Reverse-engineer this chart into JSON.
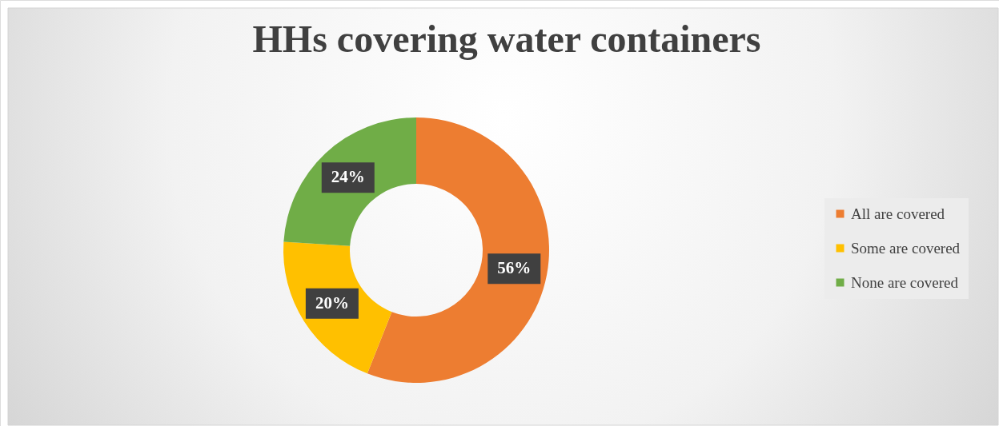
{
  "chart_data": {
    "type": "donut",
    "title": "HHs covering water containers",
    "categories": [
      "All are covered",
      "Some are covered",
      "None are covered"
    ],
    "values": [
      56,
      20,
      24
    ],
    "colors": [
      "#ed7d31",
      "#ffc000",
      "#70ad47"
    ],
    "value_labels": [
      "56%",
      "20%",
      "24%"
    ],
    "legend": "right"
  }
}
